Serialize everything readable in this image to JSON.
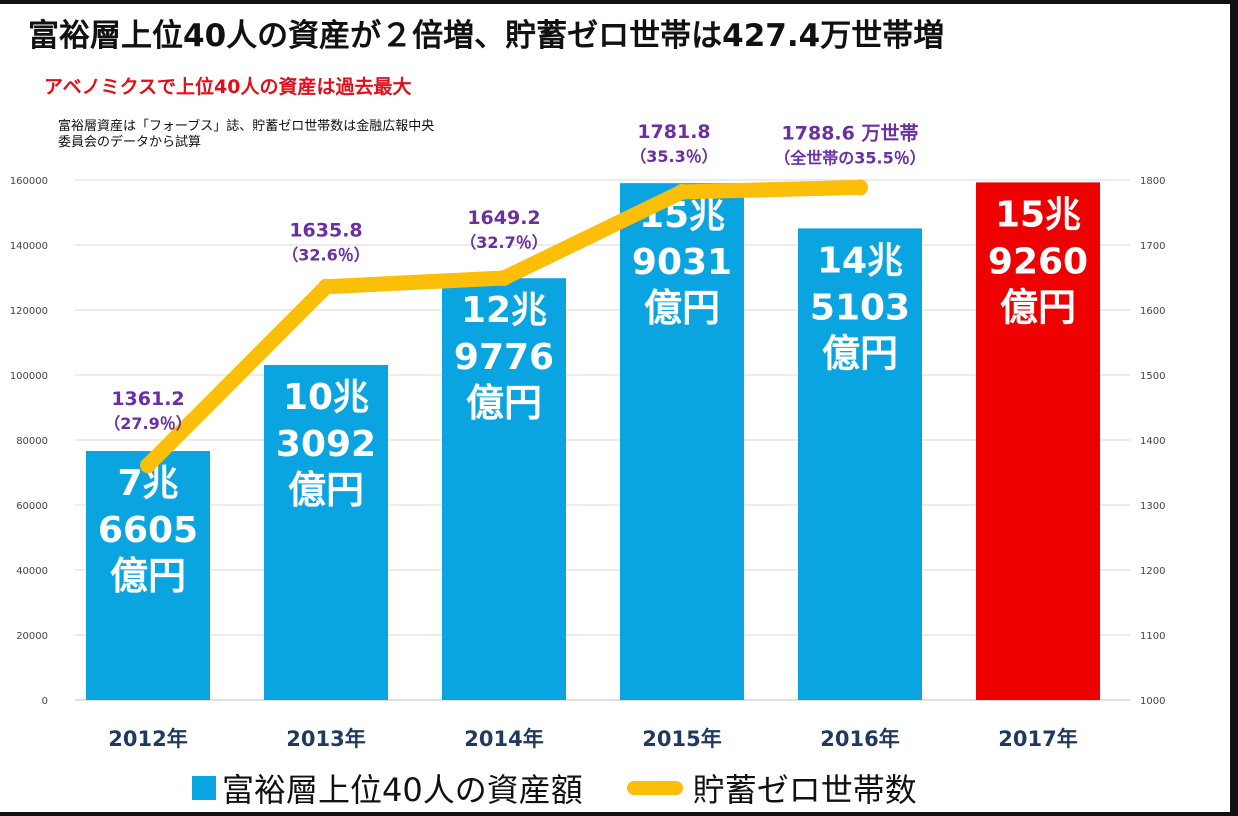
{
  "title": "富裕層上位40人の資産が２倍増、貯蓄ゼロ世帯は427.4万世帯増",
  "subtitle": "アベノミクスで上位40人の資産は過去最大",
  "source_note": "富裕層資産は「フォーブス」誌、貯蓄ゼロ世帯数は金融広報中央委員会のデータから試算",
  "colors": {
    "bar": "#0aa5e1",
    "bar_highlight": "#ee0000",
    "line": "#fbbe09",
    "line_label": "#6b2fa2",
    "grid": "#d9d9d9"
  },
  "chart_data": {
    "type": "bar",
    "categories": [
      "2012年",
      "2013年",
      "2014年",
      "2015年",
      "2016年",
      "2017年"
    ],
    "series": [
      {
        "name": "富裕層上位40人の資産額",
        "type": "bar",
        "axis": "left",
        "values": [
          76605,
          103092,
          129776,
          159031,
          145103,
          159260
        ],
        "data_labels": [
          [
            "7兆",
            "6605",
            "億円"
          ],
          [
            "10兆",
            "3092",
            "億円"
          ],
          [
            "12兆",
            "9776",
            "億円"
          ],
          [
            "15兆",
            "9031",
            "億円"
          ],
          [
            "14兆",
            "5103",
            "億円"
          ],
          [
            "15兆",
            "9260",
            "億円"
          ]
        ],
        "highlight_index": 5
      },
      {
        "name": "貯蓄ゼロ世帯数",
        "type": "line",
        "axis": "right",
        "values": [
          1361.2,
          1635.8,
          1649.2,
          1781.8,
          1788.6,
          null
        ],
        "data_labels": [
          [
            "1361.2",
            "（27.9％）"
          ],
          [
            "1635.8",
            "（32.6％）"
          ],
          [
            "1649.2",
            "（32.7％）"
          ],
          [
            "1781.8",
            "（35.3％）"
          ],
          [
            "1788.6 万世帯",
            "（全世帯の35.5％）"
          ],
          null
        ]
      }
    ],
    "y_left": {
      "min": 0,
      "max": 160000,
      "ticks": [
        "0",
        "20000",
        "40000",
        "60000",
        "80000",
        "100000",
        "120000",
        "140000",
        "160000"
      ]
    },
    "y_right": {
      "min": 1000,
      "max": 1800,
      "ticks": [
        "1000",
        "1100",
        "1200",
        "1300",
        "1400",
        "1500",
        "1600",
        "1700",
        "1800"
      ]
    },
    "grid": true,
    "legend_position": "bottom"
  }
}
